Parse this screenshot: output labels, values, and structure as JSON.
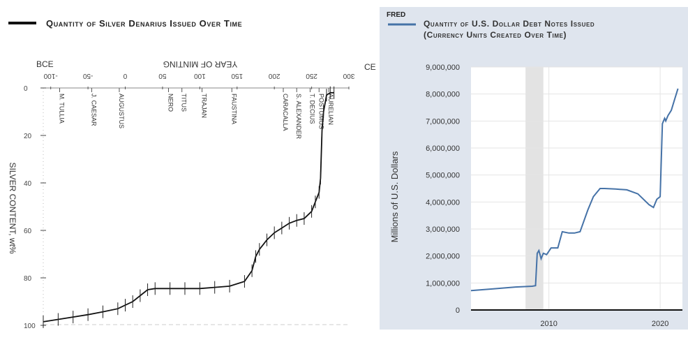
{
  "left_chart": {
    "legend": "Quantity of Silver Denarius Issued Over Time",
    "top_axis_title": "YEAR OF MINTING",
    "bce_label": "BCE",
    "ce_label": "CE",
    "y_axis_title": "SILVER CONTENT, wt%",
    "x_ticks": [
      {
        "v": -100,
        "label": "-100"
      },
      {
        "v": -50,
        "label": "-50"
      },
      {
        "v": 0,
        "label": "0"
      },
      {
        "v": 50,
        "label": "50"
      },
      {
        "v": 100,
        "label": "100"
      },
      {
        "v": 150,
        "label": "150"
      },
      {
        "v": 200,
        "label": "200"
      },
      {
        "v": 250,
        "label": "250"
      },
      {
        "v": 300,
        "label": "300"
      }
    ],
    "y_ticks": [
      {
        "v": 0,
        "label": "0"
      },
      {
        "v": 20,
        "label": "20"
      },
      {
        "v": 40,
        "label": "40"
      },
      {
        "v": 60,
        "label": "60"
      },
      {
        "v": 80,
        "label": "80"
      },
      {
        "v": 100,
        "label": "100"
      }
    ],
    "emperors": [
      {
        "name": "M. TULLIA",
        "year": -88
      },
      {
        "name": "J. CAESAR",
        "year": -45
      },
      {
        "name": "AUGUSTUS",
        "year": -8
      },
      {
        "name": "NERO",
        "year": 58
      },
      {
        "name": "TITUS",
        "year": 76
      },
      {
        "name": "TRAJAN",
        "year": 103
      },
      {
        "name": "FAUSTINA",
        "year": 143
      },
      {
        "name": "CARACALLA",
        "year": 212
      },
      {
        "name": "S. ALEXANDER",
        "year": 230
      },
      {
        "name": "T. DECIUS",
        "year": 248
      },
      {
        "name": "POSTUMUS",
        "year": 260
      },
      {
        "name": "AURELIAN",
        "year": 273
      }
    ]
  },
  "chart_data": [
    {
      "type": "line",
      "title": "Quantity of Silver Denarius Issued Over Time",
      "xlabel": "YEAR OF MINTING",
      "ylabel": "SILVER CONTENT, wt%",
      "xlim": [
        -120,
        320
      ],
      "ylim": [
        100,
        0
      ],
      "x": [
        -110,
        -90,
        -70,
        -50,
        -30,
        -10,
        0,
        10,
        20,
        30,
        40,
        60,
        80,
        100,
        120,
        140,
        160,
        170,
        175,
        180,
        190,
        200,
        210,
        220,
        230,
        240,
        250,
        255,
        260,
        262,
        264,
        266,
        270,
        275,
        280
      ],
      "series": [
        {
          "values": [
            98.5,
            97.5,
            96.5,
            95.5,
            94.3,
            93,
            91.5,
            90,
            87.5,
            85,
            84.5,
            84.5,
            84.5,
            84.5,
            84,
            83.5,
            81.5,
            77,
            71,
            68,
            64,
            61,
            59,
            57,
            55.8,
            55,
            52,
            48,
            44,
            38,
            18,
            10,
            3,
            2,
            2
          ]
        }
      ]
    },
    {
      "type": "line",
      "title": "Quantity of U.S. Dollar Debt Notes Issued (Currency Units Created Over Time)",
      "ylabel": "Millions of U.S. Dollars",
      "xlim": [
        2003,
        2022
      ],
      "ylim": [
        0,
        9000000
      ],
      "x_ticks": [
        2010,
        2020
      ],
      "y_ticks": [
        0,
        1000000,
        2000000,
        3000000,
        4000000,
        5000000,
        6000000,
        7000000,
        8000000,
        9000000
      ],
      "recession_shading": [
        2007.9,
        2009.5
      ],
      "x": [
        2003,
        2005,
        2007,
        2008.5,
        2008.8,
        2008.95,
        2009.1,
        2009.3,
        2009.5,
        2009.8,
        2010.2,
        2010.8,
        2011.2,
        2011.8,
        2012.3,
        2012.8,
        2013.5,
        2014,
        2014.6,
        2015,
        2016,
        2017,
        2018,
        2019,
        2019.4,
        2019.7,
        2020.0,
        2020.2,
        2020.4,
        2020.5,
        2020.7,
        2021,
        2021.3,
        2021.6
      ],
      "series": [
        {
          "values": [
            720000,
            780000,
            850000,
            880000,
            900000,
            2100000,
            2200000,
            1900000,
            2100000,
            2050000,
            2300000,
            2300000,
            2900000,
            2850000,
            2850000,
            2900000,
            3700000,
            4200000,
            4500000,
            4500000,
            4480000,
            4450000,
            4300000,
            3900000,
            3800000,
            4100000,
            4200000,
            6900000,
            7100000,
            7000000,
            7200000,
            7400000,
            7800000,
            8200000
          ]
        }
      ]
    }
  ],
  "right_chart": {
    "badge": "FRED",
    "title_line1": "Quantity of U.S. Dollar Debt Notes Issued",
    "title_line2": "(Currency Units Created Over Time)",
    "y_axis_title": "Millions of U.S. Dollars",
    "y_tick_labels": [
      "0",
      "1,000,000",
      "2,000,000",
      "3,000,000",
      "4,000,000",
      "5,000,000",
      "6,000,000",
      "7,000,000",
      "8,000,000",
      "9,000,000"
    ],
    "x_tick_labels": [
      "2010",
      "2020"
    ],
    "line_color": "#4572a7"
  }
}
